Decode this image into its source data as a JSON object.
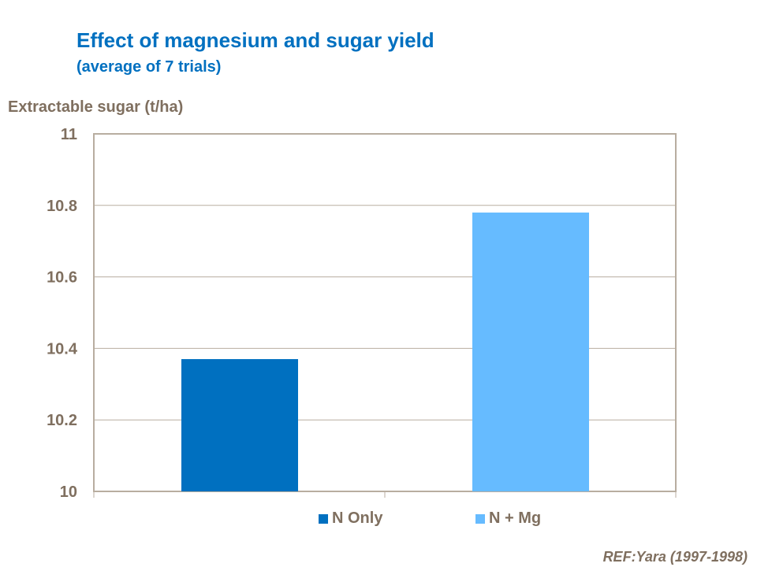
{
  "chart_data": {
    "type": "bar",
    "title": "Effect of magnesium and sugar yield",
    "subtitle": "(average of 7 trials)",
    "xlabel": "",
    "ylabel": "Extractable sugar (t/ha)",
    "ylim": [
      10,
      11
    ],
    "yticks": [
      "10",
      "10.2",
      "10.4",
      "10.6",
      "10.8",
      "11"
    ],
    "grid": true,
    "legend_position": "bottom",
    "series": [
      {
        "name": "N Only",
        "value": 10.37,
        "color": "#0070c0"
      },
      {
        "name": "N + Mg",
        "value": 10.78,
        "color": "#66bbff"
      }
    ],
    "axis_color": "#b8ada0",
    "text_color": "#7f6f5f"
  },
  "reference": "REF:Yara (1997-1998)"
}
